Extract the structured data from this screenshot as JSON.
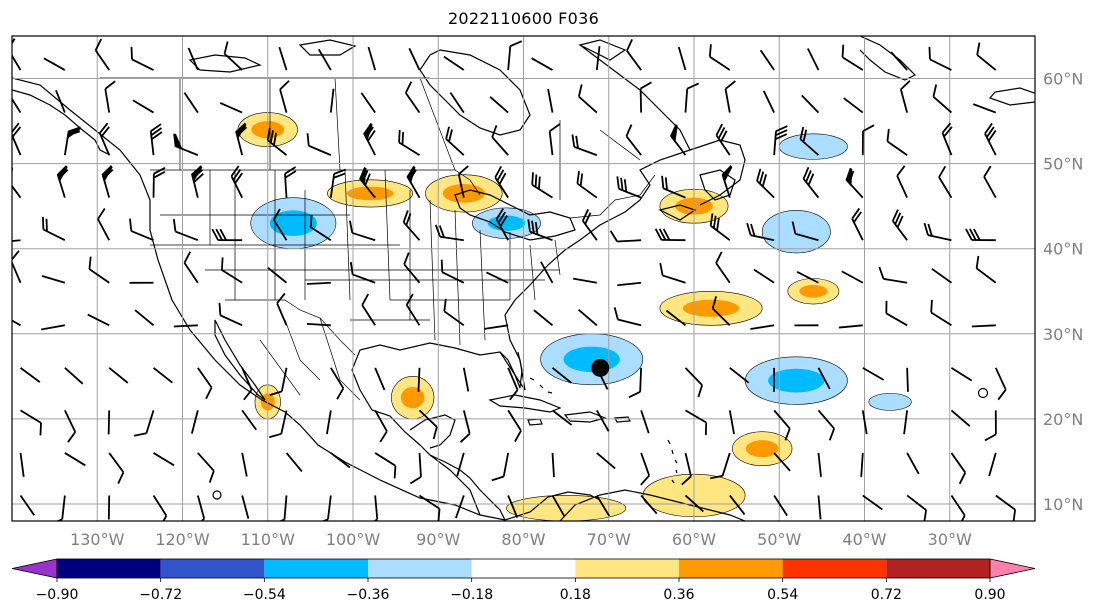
{
  "title": "2022110600 F036",
  "map": {
    "lon_range": [
      -140,
      -20
    ],
    "lat_range": [
      8,
      65
    ],
    "projection": "PlateCarree",
    "gridlines": true,
    "lat_labels": [
      "10°N",
      "20°N",
      "30°N",
      "40°N",
      "50°N",
      "60°N"
    ],
    "lat_values": [
      10,
      20,
      30,
      40,
      50,
      60
    ],
    "lon_labels": [
      "130°W",
      "120°W",
      "110°W",
      "100°W",
      "90°W",
      "80°W",
      "70°W",
      "60°W",
      "50°W",
      "40°W",
      "30°W"
    ],
    "lon_values": [
      -130,
      -120,
      -110,
      -100,
      -90,
      -80,
      -70,
      -60,
      -50,
      -40,
      -30
    ],
    "marker": {
      "lon": -71,
      "lat": 26,
      "color": "#000000"
    },
    "colors": {
      "gridline": "#a0a0a0",
      "coastline": "#000000",
      "label": "#7f7f7f"
    }
  },
  "colorbar": {
    "extend": "both",
    "levels": [
      -0.9,
      -0.72,
      -0.54,
      -0.36,
      -0.18,
      0.18,
      0.36,
      0.54,
      0.72,
      0.9
    ],
    "tick_labels": [
      "−0.90",
      "−0.72",
      "−0.54",
      "−0.36",
      "−0.18",
      "0.18",
      "0.36",
      "0.54",
      "0.72",
      "0.90"
    ],
    "colors": [
      "#9933cc",
      "#00007f",
      "#3355cc",
      "#00bbff",
      "#aaddff",
      "#ffffff",
      "#ffe680",
      "#ff9900",
      "#ff3300",
      "#b22222",
      "#ff80aa"
    ]
  },
  "anomaly_patches": [
    {
      "lon": -110,
      "lat": 54,
      "rx": 3.5,
      "ry": 2,
      "v": 0.45
    },
    {
      "lon": -87,
      "lat": 46.5,
      "rx": 4.5,
      "ry": 2.2,
      "v": 0.55
    },
    {
      "lon": -98,
      "lat": 46.5,
      "rx": 5,
      "ry": 1.6,
      "v": 0.4
    },
    {
      "lon": -107,
      "lat": 43,
      "rx": 5,
      "ry": 3,
      "v": -0.5
    },
    {
      "lon": -82,
      "lat": 43,
      "rx": 4,
      "ry": 1.8,
      "v": -0.5
    },
    {
      "lon": -72,
      "lat": 27,
      "rx": 6,
      "ry": 3,
      "v": -0.45
    },
    {
      "lon": -48,
      "lat": 24.5,
      "rx": 6,
      "ry": 2.8,
      "v": -0.5
    },
    {
      "lon": -58,
      "lat": 33,
      "rx": 6,
      "ry": 2,
      "v": 0.4
    },
    {
      "lon": -46,
      "lat": 35,
      "rx": 3,
      "ry": 1.5,
      "v": 0.45
    },
    {
      "lon": -48,
      "lat": 42,
      "rx": 4,
      "ry": 2.5,
      "v": -0.35
    },
    {
      "lon": -52,
      "lat": 16.5,
      "rx": 3.5,
      "ry": 2,
      "v": 0.45
    },
    {
      "lon": -60,
      "lat": 11,
      "rx": 6,
      "ry": 2.5,
      "v": 0.35
    },
    {
      "lon": -75,
      "lat": 9.5,
      "rx": 7,
      "ry": 1.5,
      "v": 0.35
    },
    {
      "lon": -93,
      "lat": 22.5,
      "rx": 2.5,
      "ry": 2.5,
      "v": 0.4
    },
    {
      "lon": -110,
      "lat": 22,
      "rx": 1.5,
      "ry": 2,
      "v": 0.45
    },
    {
      "lon": -85,
      "lat": 63,
      "rx": 3,
      "ry": 1.5,
      "v": 0.0
    },
    {
      "lon": -60,
      "lat": 45,
      "rx": 4,
      "ry": 2,
      "v": 0.4
    },
    {
      "lon": -37,
      "lat": 22,
      "rx": 2.5,
      "ry": 1,
      "v": -0.3
    },
    {
      "lon": -46,
      "lat": 52,
      "rx": 4,
      "ry": 1.5,
      "v": -0.25
    }
  ]
}
